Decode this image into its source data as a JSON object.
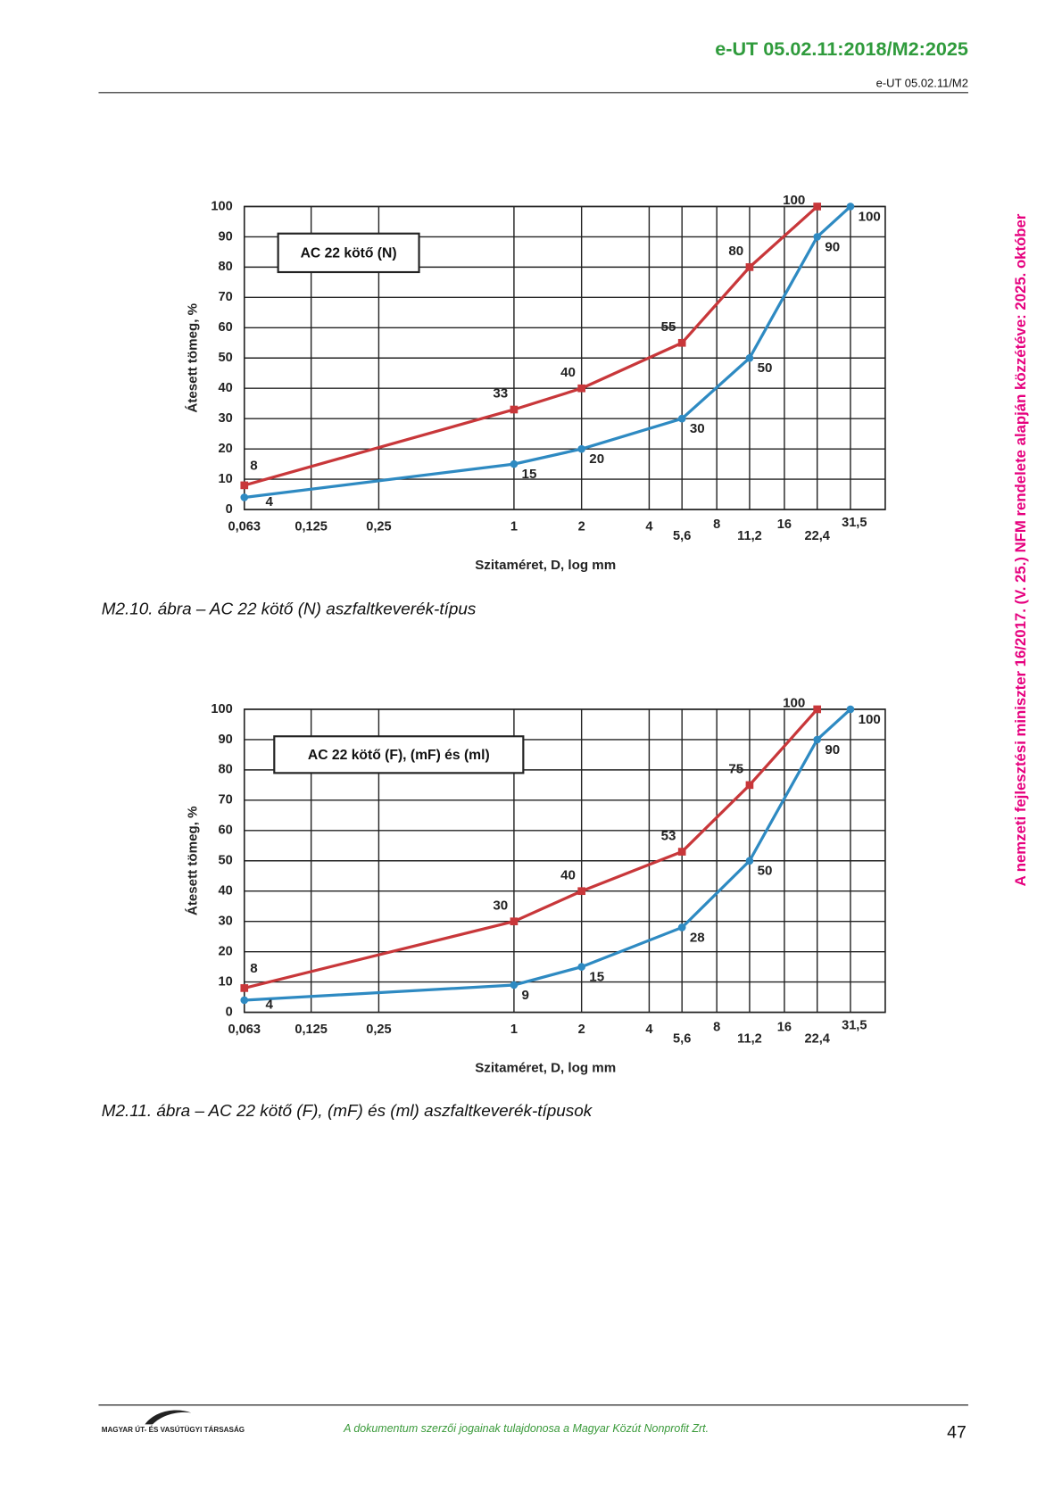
{
  "header": {
    "title": "e-UT 05.02.11:2018/M2:2025",
    "subtitle": "e-UT 05.02.11/M2"
  },
  "side_note": "A nemzeti fejlesztési miniszter 16/2017. (V. 25.) NFM rendelete alapján közzétéve: 2025. október",
  "chart_data": [
    {
      "type": "line",
      "annotation": "AC 22 kötő (N)",
      "caption": "M2.10. ábra – AC 22 kötő (N) aszfaltkeverék-típus",
      "x_label": "Szitaméret, D, log mm",
      "y_label": "Átesett tömeg, %",
      "x_scale": "log",
      "grid": true,
      "xlim": [
        0.063,
        45
      ],
      "xticks": [
        {
          "value": 0.063,
          "label": "0,063"
        },
        {
          "value": 0.125,
          "label": "0,125"
        },
        {
          "value": 0.25,
          "label": "0,25"
        },
        1,
        2,
        4,
        {
          "value": 5.6,
          "label": "5,6"
        },
        8,
        {
          "value": 11.2,
          "label": "11,2"
        },
        16,
        {
          "value": 22.4,
          "label": "22,4"
        },
        {
          "value": 31.5,
          "label": "31,5"
        }
      ],
      "ylim": [
        0,
        100
      ],
      "yticks": [
        0,
        10,
        20,
        30,
        40,
        50,
        60,
        70,
        80,
        90,
        100
      ],
      "series": [
        {
          "color": "#c8373a",
          "marker": "square",
          "x": [
            0.063,
            1,
            2,
            5.6,
            11.2,
            22.4
          ],
          "values": [
            8,
            33,
            40,
            55,
            80,
            100
          ]
        },
        {
          "color": "#2e8ac2",
          "marker": "circle",
          "x": [
            0.063,
            1,
            2,
            5.6,
            11.2,
            22.4,
            31.5
          ],
          "values": [
            4,
            15,
            20,
            30,
            50,
            90,
            100
          ]
        }
      ]
    },
    {
      "type": "line",
      "annotation": "AC 22 kötő (F), (mF) és (ml)",
      "caption": "M2.11. ábra – AC 22 kötő (F), (mF) és (ml) aszfaltkeverék-típusok",
      "x_label": "Szitaméret, D, log mm",
      "y_label": "Átesett tömeg, %",
      "x_scale": "log",
      "grid": true,
      "xlim": [
        0.063,
        45
      ],
      "xticks": [
        {
          "value": 0.063,
          "label": "0,063"
        },
        {
          "value": 0.125,
          "label": "0,125"
        },
        {
          "value": 0.25,
          "label": "0,25"
        },
        1,
        2,
        4,
        {
          "value": 5.6,
          "label": "5,6"
        },
        8,
        {
          "value": 11.2,
          "label": "11,2"
        },
        16,
        {
          "value": 22.4,
          "label": "22,4"
        },
        {
          "value": 31.5,
          "label": "31,5"
        }
      ],
      "ylim": [
        0,
        100
      ],
      "yticks": [
        0,
        10,
        20,
        30,
        40,
        50,
        60,
        70,
        80,
        90,
        100
      ],
      "series": [
        {
          "color": "#c8373a",
          "marker": "square",
          "x": [
            0.063,
            1,
            2,
            5.6,
            11.2,
            22.4
          ],
          "values": [
            8,
            30,
            40,
            53,
            75,
            100
          ]
        },
        {
          "color": "#2e8ac2",
          "marker": "circle",
          "x": [
            0.063,
            1,
            2,
            5.6,
            11.2,
            22.4,
            31.5
          ],
          "values": [
            4,
            9,
            15,
            28,
            50,
            90,
            100
          ]
        }
      ]
    }
  ],
  "footer": {
    "logo_text": "MAGYAR ÚT- ÉS VASÚTÜGYI TÁRSASÁG",
    "copyright": "A dokumentum szerzői jogainak tulajdonosa a Magyar Közút Nonprofit Zrt.",
    "page": 47
  }
}
